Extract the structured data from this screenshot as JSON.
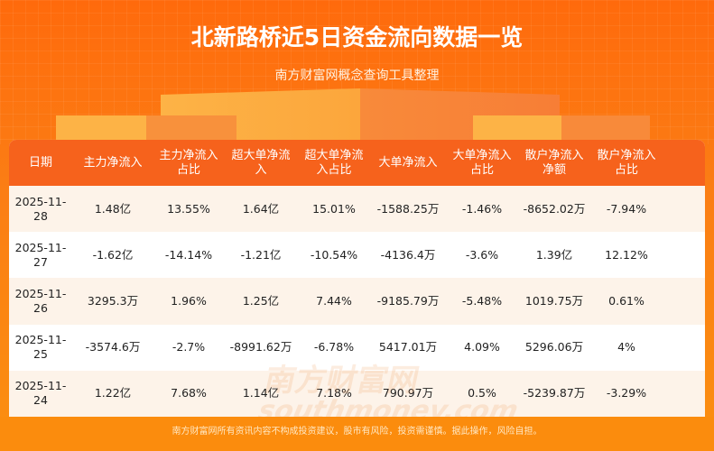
{
  "header": {
    "title": "北新路桥近5日资金流向数据一览",
    "subtitle": "南方财富网概念查询工具整理"
  },
  "table": {
    "columns": [
      "日期",
      "主力净流入",
      "主力净流入\n占比",
      "超大单净流\n入",
      "超大单净流\n入占比",
      "大单净流入",
      "大单净流入\n占比",
      "散户净流入\n净额",
      "散户净流入\n占比"
    ],
    "rows": [
      [
        "2025-11-28",
        "1.48亿",
        "13.55%",
        "1.64亿",
        "15.01%",
        "-1588.25万",
        "-1.46%",
        "-8652.02万",
        "-7.94%"
      ],
      [
        "2025-11-27",
        "-1.62亿",
        "-14.14%",
        "-1.21亿",
        "-10.54%",
        "-4136.4万",
        "-3.6%",
        "1.39亿",
        "12.12%"
      ],
      [
        "2025-11-26",
        "3295.3万",
        "1.96%",
        "1.25亿",
        "7.44%",
        "-9185.79万",
        "-5.48%",
        "1019.75万",
        "0.61%"
      ],
      [
        "2025-11-25",
        "-3574.6万",
        "-2.7%",
        "-8991.62万",
        "-6.78%",
        "5417.01万",
        "4.09%",
        "5296.06万",
        "4%"
      ],
      [
        "2025-11-24",
        "1.22亿",
        "7.68%",
        "1.14亿",
        "7.18%",
        "790.97万",
        "0.5%",
        "-5239.87万",
        "-3.29%"
      ]
    ]
  },
  "watermark": {
    "cn": "南方财富网",
    "en": "southmoney.com"
  },
  "footer": {
    "disclaimer": "南方财富网所有资讯内容不构成投资建议，股市有风险，投资需谨慎。据此操作，风险自担。"
  },
  "colors": {
    "header_bg": "#f6621c",
    "page_bg": "#fb7d14",
    "alt_row": "#fdf3e9"
  }
}
